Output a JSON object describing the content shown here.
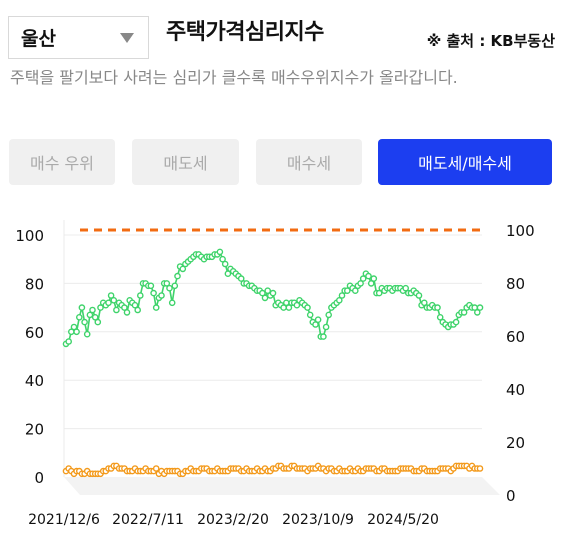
{
  "header": {
    "region": "울산",
    "title": "주택가격심리지수",
    "source": "※ 출처 : KB부동산",
    "description": "주택을 팔기보다 사려는 심리가 클수록 매수우위지수가 올라갑니다."
  },
  "tabs": [
    {
      "label": "매수 우위",
      "active": false
    },
    {
      "label": "매도세",
      "active": false
    },
    {
      "label": "매수세",
      "active": false
    },
    {
      "label": "매도세/매수세",
      "active": true
    }
  ],
  "colors": {
    "accent": "#1c3ef0",
    "series_main": "#3ed36a",
    "series_sub": "#f39a1c",
    "reference_line": "#f26b11"
  },
  "chart_data": {
    "type": "line",
    "x_tick_labels": [
      "2021/12/6",
      "2022/7/11",
      "2023/2/20",
      "2023/10/9",
      "2024/5/20"
    ],
    "y_left_ticks": [
      0,
      20,
      40,
      60,
      80,
      100
    ],
    "y_right_ticks": [
      0,
      20,
      40,
      60,
      80,
      100
    ],
    "ylim": [
      0,
      100
    ],
    "reference_value": 100,
    "grid": true,
    "series": [
      {
        "axis": "left",
        "values": [
          55,
          56,
          60,
          62,
          60,
          66,
          70,
          64,
          59,
          67,
          69,
          66,
          64,
          70,
          72,
          71,
          72,
          75,
          73,
          69,
          72,
          71,
          70,
          68,
          73,
          72,
          71,
          69,
          75,
          80,
          80,
          79,
          79,
          76,
          70,
          74,
          75,
          80,
          80,
          78,
          72,
          79,
          83,
          87,
          86,
          88,
          89,
          90,
          91,
          92,
          92,
          91,
          90,
          91,
          91,
          91,
          92,
          92,
          93,
          90,
          88,
          84,
          86,
          85,
          84,
          83,
          82,
          80,
          80,
          79,
          79,
          78,
          77,
          77,
          76,
          74,
          77,
          75,
          76,
          71,
          72,
          71,
          70,
          72,
          70,
          72,
          72,
          71,
          73,
          72,
          71,
          70,
          67,
          64,
          63,
          65,
          58,
          58,
          62,
          67,
          70,
          71,
          72,
          73,
          75,
          77,
          77,
          79,
          78,
          77,
          79,
          80,
          82,
          84,
          83,
          80,
          82,
          76,
          76,
          78,
          77,
          78,
          78,
          77,
          78,
          78,
          78,
          77,
          78,
          76,
          76,
          77,
          76,
          75,
          71,
          72,
          70,
          70,
          71,
          70,
          70,
          66,
          64,
          63,
          62,
          63,
          63,
          64,
          67,
          68,
          68,
          70,
          71,
          70,
          70,
          68,
          70
        ]
      },
      {
        "axis": "right",
        "values": [
          9,
          10,
          9,
          8,
          9,
          9,
          8,
          8,
          9,
          8,
          8,
          8,
          8,
          8,
          9,
          9,
          10,
          10,
          11,
          11,
          10,
          10,
          10,
          9,
          9,
          9,
          10,
          9,
          9,
          9,
          10,
          9,
          9,
          9,
          10,
          8,
          9,
          8,
          9,
          9,
          9,
          9,
          9,
          8,
          8,
          9,
          9,
          10,
          9,
          9,
          9,
          10,
          10,
          10,
          9,
          9,
          9,
          10,
          9,
          9,
          9,
          9,
          10,
          10,
          10,
          10,
          9,
          9,
          10,
          9,
          9,
          9,
          10,
          9,
          9,
          10,
          9,
          9,
          10,
          10,
          11,
          11,
          10,
          10,
          10,
          11,
          11,
          10,
          10,
          10,
          10,
          9,
          10,
          10,
          10,
          11,
          10,
          10,
          9,
          10,
          10,
          9,
          9,
          10,
          9,
          9,
          9,
          10,
          9,
          9,
          10,
          9,
          9,
          10,
          10,
          10,
          10,
          9,
          9,
          10,
          10,
          9,
          9,
          9,
          9,
          9,
          10,
          10,
          10,
          10,
          10,
          9,
          9,
          9,
          10,
          10,
          9,
          9,
          9,
          9,
          9,
          10,
          10,
          10,
          10,
          9,
          10,
          11,
          11,
          11,
          11,
          11,
          10,
          11,
          10,
          10,
          10
        ]
      }
    ]
  }
}
